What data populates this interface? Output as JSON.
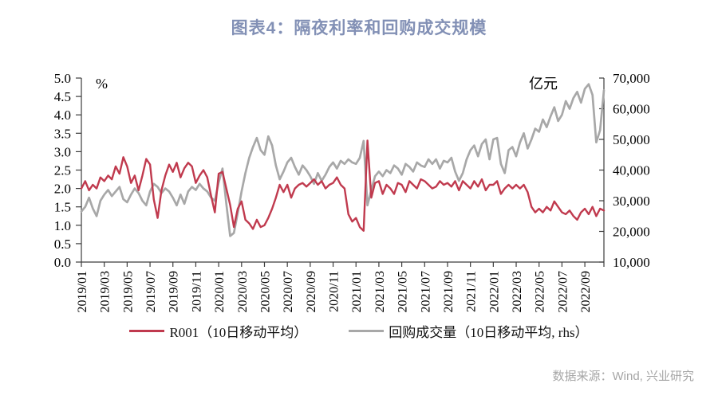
{
  "title": "图表4：隔夜利率和回购成交规模",
  "source_note": "数据来源：Wind, 兴业研究",
  "colors": {
    "title_text": "#8290b5",
    "r001_line": "#c03a4e",
    "volume_line": "#a8a8a8",
    "axis": "#3c3c3c",
    "source_text": "#a6a6a6"
  },
  "chart_data": {
    "type": "line",
    "title": "图表4：隔夜利率和回购成交规模",
    "legend_position": "bottom",
    "grid": false,
    "left_axis": {
      "unit_label": "%",
      "min": 0,
      "max": 5,
      "step": 0.5,
      "ticks": [
        "5.0",
        "4.5",
        "4.0",
        "3.5",
        "3.0",
        "2.5",
        "2.0",
        "1.5",
        "1.0",
        "0.5",
        "0.0"
      ]
    },
    "right_axis": {
      "unit_label": "亿元",
      "min": 10000,
      "max": 70000,
      "step": 10000,
      "ticks": [
        "70,000",
        "60,000",
        "50,000",
        "40,000",
        "30,000",
        "20,000",
        "10,000"
      ]
    },
    "x_axis": {
      "months_total": 46,
      "points_per_month": 3,
      "first_month": "2019/01",
      "last_month": "2022/10",
      "tick_every_months": 2,
      "tick_labels": [
        "2019/01",
        "2019/03",
        "2019/05",
        "2019/07",
        "2019/09",
        "2019/11",
        "2020/01",
        "2020/03",
        "2020/05",
        "2020/07",
        "2020/09",
        "2020/11",
        "2021/01",
        "2021/03",
        "2021/05",
        "2021/07",
        "2021/09",
        "2021/11",
        "2022/01",
        "2022/03",
        "2022/05",
        "2022/07",
        "2022/09"
      ]
    },
    "series": [
      {
        "name": "R001（10日移动平均）",
        "axis": "left",
        "color": "#c03a4e",
        "values": [
          2.0,
          2.2,
          1.95,
          2.1,
          2.0,
          2.3,
          2.2,
          2.35,
          2.25,
          2.6,
          2.4,
          2.85,
          2.6,
          2.15,
          2.35,
          1.95,
          2.35,
          2.8,
          2.65,
          1.7,
          1.2,
          1.95,
          2.35,
          2.65,
          2.45,
          2.7,
          2.3,
          2.55,
          2.7,
          2.6,
          2.15,
          2.35,
          2.5,
          2.3,
          1.8,
          1.35,
          2.4,
          2.45,
          2.0,
          1.55,
          0.95,
          1.45,
          1.65,
          1.15,
          1.05,
          0.9,
          1.15,
          0.95,
          1.0,
          1.2,
          1.45,
          1.75,
          2.1,
          1.9,
          2.1,
          1.75,
          2.0,
          2.1,
          2.15,
          2.05,
          2.15,
          2.25,
          2.1,
          2.2,
          2.0,
          2.1,
          2.15,
          2.3,
          2.1,
          2.0,
          1.3,
          1.1,
          1.2,
          0.95,
          0.85,
          3.3,
          1.75,
          2.15,
          2.2,
          1.85,
          2.1,
          2.0,
          1.85,
          2.15,
          2.1,
          1.9,
          2.2,
          2.1,
          2.0,
          2.25,
          2.2,
          2.1,
          2.0,
          2.05,
          2.2,
          2.1,
          2.15,
          2.05,
          2.2,
          1.95,
          2.2,
          2.1,
          2.0,
          2.2,
          2.05,
          2.25,
          1.95,
          2.1,
          2.1,
          2.2,
          1.85,
          2.0,
          2.1,
          2.0,
          2.1,
          2.0,
          2.1,
          1.9,
          1.5,
          1.35,
          1.45,
          1.35,
          1.5,
          1.4,
          1.65,
          1.5,
          1.35,
          1.3,
          1.4,
          1.25,
          1.15,
          1.35,
          1.45,
          1.3,
          1.5,
          1.25,
          1.45,
          1.4
        ]
      },
      {
        "name": "回购成交量（10日移动平均, rhs）",
        "axis": "right",
        "color": "#a8a8a8",
        "values": [
          26500,
          28000,
          31000,
          27500,
          25000,
          30000,
          32000,
          33500,
          31500,
          33000,
          34500,
          30500,
          29500,
          32000,
          34000,
          32500,
          30000,
          28500,
          33000,
          35500,
          34500,
          32500,
          34000,
          33000,
          31000,
          28500,
          32000,
          29000,
          33000,
          34500,
          33500,
          35500,
          34000,
          33000,
          31000,
          30000,
          36000,
          40500,
          29000,
          18500,
          19500,
          26000,
          33000,
          39000,
          44000,
          47500,
          50500,
          46500,
          45000,
          51000,
          48000,
          41500,
          37000,
          39500,
          42500,
          44000,
          41000,
          38500,
          41500,
          40000,
          38000,
          35500,
          39000,
          36500,
          38500,
          41000,
          42500,
          40500,
          43000,
          42000,
          43500,
          42500,
          42000,
          44000,
          49500,
          28500,
          33500,
          38000,
          39500,
          38000,
          40000,
          39000,
          41500,
          40500,
          38500,
          42000,
          41000,
          39500,
          42500,
          41500,
          41000,
          43500,
          42000,
          43500,
          40500,
          43000,
          42500,
          44000,
          39500,
          36500,
          39000,
          43500,
          46500,
          48000,
          44500,
          48500,
          50000,
          43500,
          50000,
          50500,
          42000,
          39000,
          46500,
          47500,
          44500,
          49000,
          52000,
          47000,
          50000,
          53500,
          52500,
          56500,
          54000,
          57500,
          60500,
          56000,
          58000,
          62500,
          60000,
          63500,
          65500,
          62000,
          66500,
          68000,
          64500,
          49000,
          53000,
          66000
        ]
      }
    ]
  }
}
